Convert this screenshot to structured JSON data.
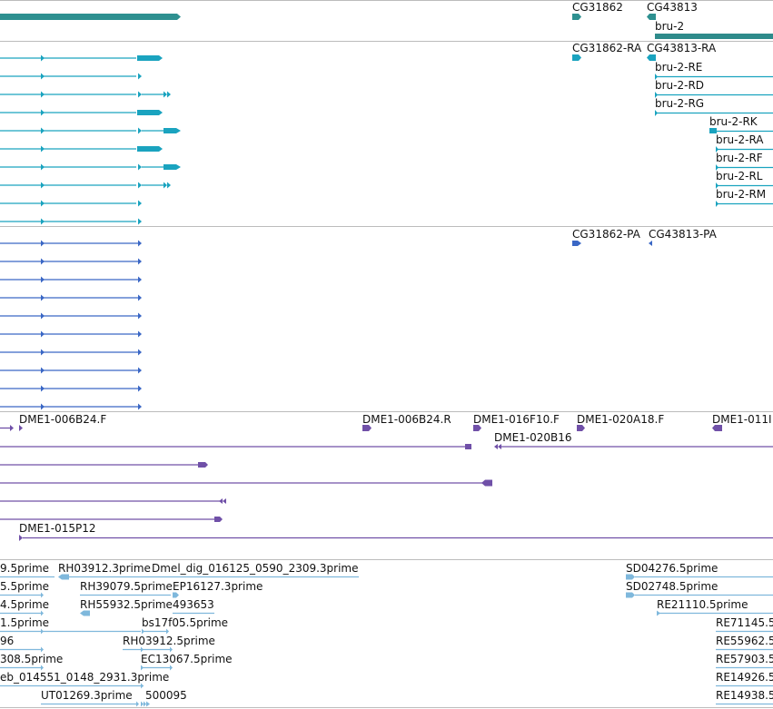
{
  "colors": {
    "gene": "#2e9090",
    "gene_bar": "#2e8b8b",
    "mrna": "#1aa3bf",
    "protein": "#3a67c5",
    "bac": "#7050a8",
    "est": "#7fb8dc",
    "divider": "#bcbcbc"
  },
  "tracks": {
    "genes": {
      "features": [
        {
          "id": "gene_left",
          "label": "",
          "color": "gene"
        },
        {
          "id": "cg31862",
          "label": "CG31862",
          "color": "gene"
        },
        {
          "id": "cg43813",
          "label": "CG43813",
          "color": "gene"
        },
        {
          "id": "bru2",
          "label": "bru-2",
          "color": "gene"
        }
      ]
    },
    "transcripts": {
      "features": [
        {
          "id": "cg31862_ra",
          "label": "CG31862-RA"
        },
        {
          "id": "cg43813_ra",
          "label": "CG43813-RA"
        },
        {
          "id": "bru2_re",
          "label": "bru-2-RE"
        },
        {
          "id": "bru2_rd",
          "label": "bru-2-RD"
        },
        {
          "id": "bru2_rg",
          "label": "bru-2-RG"
        },
        {
          "id": "bru2_rk",
          "label": "bru-2-RK"
        },
        {
          "id": "bru2_ra",
          "label": "bru-2-RA"
        },
        {
          "id": "bru2_rf",
          "label": "bru-2-RF"
        },
        {
          "id": "bru2_rl",
          "label": "bru-2-RL"
        },
        {
          "id": "bru2_rm",
          "label": "bru-2-RM"
        }
      ]
    },
    "proteins": {
      "features": [
        {
          "id": "cg31862_pa",
          "label": "CG31862-PA"
        },
        {
          "id": "cg43813_pa",
          "label": "CG43813-PA"
        }
      ]
    },
    "bac_clones": {
      "features": [
        {
          "id": "dme1_006b24_f",
          "label": "DME1-006B24.F"
        },
        {
          "id": "dme1_006b24_r",
          "label": "DME1-006B24.R"
        },
        {
          "id": "dme1_016f10_f",
          "label": "DME1-016F10.F"
        },
        {
          "id": "dme1_020a18_f",
          "label": "DME1-020A18.F"
        },
        {
          "id": "dme1_011",
          "label": "DME1-011I"
        },
        {
          "id": "dme1_020b16",
          "label": "DME1-020B16"
        },
        {
          "id": "dme1_015p12",
          "label": "DME1-015P12"
        }
      ]
    },
    "ests": {
      "features": [
        {
          "id": "e1",
          "label": "9.5prime"
        },
        {
          "id": "e2",
          "label": "RH03912.3prime"
        },
        {
          "id": "e3",
          "label": "Dmel_dig_016125_0590_2309.3prime"
        },
        {
          "id": "e4",
          "label": "SD04276.5prime"
        },
        {
          "id": "e5",
          "label": "5.5prime"
        },
        {
          "id": "e6",
          "label": "RH39079.5prime"
        },
        {
          "id": "e7",
          "label": "EP16127.3prime"
        },
        {
          "id": "e8",
          "label": "SD02748.5prime"
        },
        {
          "id": "e9",
          "label": "4.5prime"
        },
        {
          "id": "e10",
          "label": "RH55932.5prime"
        },
        {
          "id": "e11",
          "label": "493653"
        },
        {
          "id": "e12",
          "label": "RE21110.5prime"
        },
        {
          "id": "e13",
          "label": "1.5prime"
        },
        {
          "id": "e14",
          "label": "bs17f05.5prime"
        },
        {
          "id": "e15",
          "label": "RE71145.5"
        },
        {
          "id": "e16",
          "label": "96"
        },
        {
          "id": "e17",
          "label": "RH03912.5prime"
        },
        {
          "id": "e18",
          "label": "RE55962.5"
        },
        {
          "id": "e19",
          "label": "308.5prime"
        },
        {
          "id": "e20",
          "label": "EC13067.5prime"
        },
        {
          "id": "e21",
          "label": "RE57903.5"
        },
        {
          "id": "e22",
          "label": "eb_014551_0148_2931.3prime"
        },
        {
          "id": "e23",
          "label": "RE14926.5"
        },
        {
          "id": "e24",
          "label": "UT01269.3prime"
        },
        {
          "id": "e25",
          "label": "500095"
        },
        {
          "id": "e26",
          "label": "RE14938.5"
        }
      ]
    }
  }
}
